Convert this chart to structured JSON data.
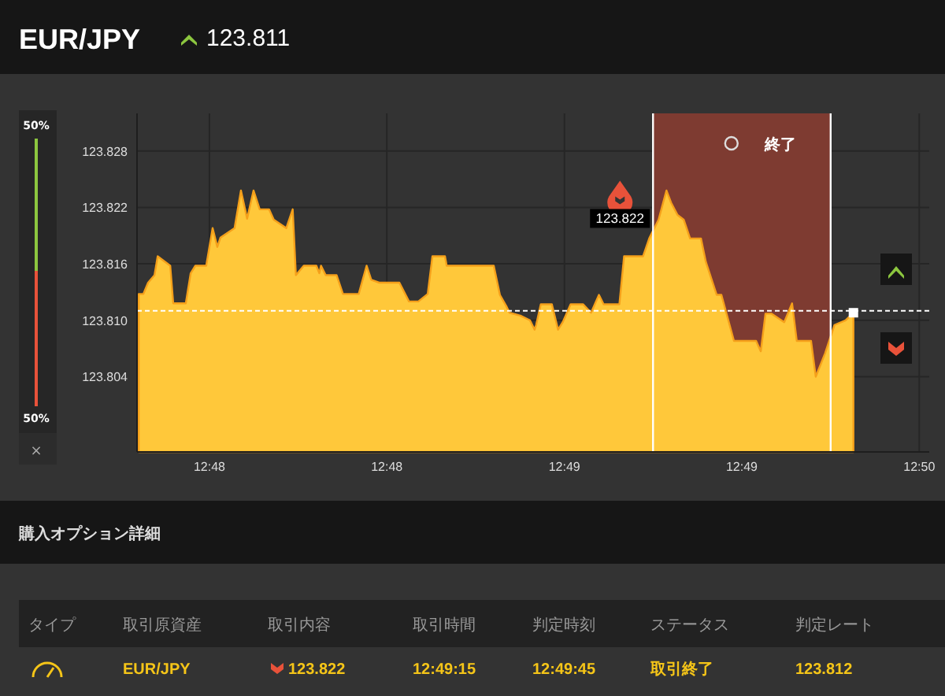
{
  "chart_data": {
    "type": "area",
    "title": "EUR/JPY",
    "subtitle": "123.811",
    "color": "#ffc83a",
    "grid": true,
    "xlim": [
      12.7966,
      12.8338
    ],
    "xticks": [
      {
        "value": 12.8,
        "label": "12:48"
      },
      {
        "value": 12.80833,
        "label": "12:48"
      },
      {
        "value": 12.81667,
        "label": "12:49"
      },
      {
        "value": 12.825,
        "label": "12:49"
      },
      {
        "value": 12.83333,
        "label": "12:50"
      }
    ],
    "ylim": [
      123.796,
      123.832
    ],
    "yticks": [
      123.804,
      {
        "value": 123.81,
        "label": "123.810"
      },
      123.816,
      123.822,
      123.828
    ],
    "x": [
      12.79668,
      12.7969,
      12.79712,
      12.79742,
      12.79757,
      12.79816,
      12.7983,
      12.79889,
      12.79912,
      12.79934,
      12.79985,
      12.80015,
      12.80037,
      12.80052,
      12.80118,
      12.80148,
      12.80177,
      12.80207,
      12.80236,
      12.8028,
      12.80302,
      12.80361,
      12.80391,
      12.80406,
      12.80443,
      12.80502,
      12.80516,
      12.80524,
      12.80546,
      12.80597,
      12.80627,
      12.80701,
      12.80738,
      12.8076,
      12.80797,
      12.80892,
      12.80937,
      12.80981,
      12.81025,
      12.81047,
      12.81106,
      12.81114,
      12.81335,
      12.81364,
      12.81394,
      12.81409,
      12.8146,
      12.81505,
      12.81527,
      12.81534,
      12.81556,
      12.81608,
      12.81637,
      12.81659,
      12.81696,
      12.81755,
      12.81792,
      12.81829,
      12.81851,
      12.81925,
      12.81947,
      12.82036,
      12.82065,
      12.82109,
      12.82146,
      12.82168,
      12.82198,
      12.82227,
      12.82257,
      12.82308,
      12.82331,
      12.82382,
      12.82404,
      12.82463,
      12.82567,
      12.82589,
      12.82611,
      12.8264,
      12.82699,
      12.82736,
      12.82758,
      12.82825,
      12.82847,
      12.82891,
      12.82935,
      12.82987,
      12.83024
    ],
    "values": [
      123.8128,
      123.8128,
      123.814,
      123.8148,
      123.8168,
      123.8158,
      123.8118,
      123.8118,
      123.815,
      123.8158,
      123.8158,
      123.8198,
      123.8178,
      123.8188,
      123.8198,
      123.8238,
      123.8208,
      123.8238,
      123.8218,
      123.8218,
      123.8207,
      123.8198,
      123.8218,
      123.8148,
      123.8158,
      123.8158,
      123.815,
      123.8158,
      123.8148,
      123.8148,
      123.8128,
      123.8128,
      123.8158,
      123.8143,
      123.814,
      123.814,
      123.812,
      123.812,
      123.8128,
      123.8168,
      123.8168,
      123.8158,
      123.8158,
      123.8127,
      123.8115,
      123.8108,
      123.8105,
      123.81,
      123.809,
      123.8095,
      123.8117,
      123.8117,
      123.809,
      123.8098,
      123.8117,
      123.8117,
      123.8108,
      123.8127,
      123.8117,
      123.8117,
      123.8168,
      123.8168,
      123.8187,
      123.8207,
      123.8238,
      123.8225,
      123.8212,
      123.8207,
      123.8187,
      123.8187,
      123.8162,
      123.8127,
      123.8127,
      123.8078,
      123.8078,
      123.8067,
      123.8107,
      123.8107,
      123.8098,
      123.8118,
      123.8078,
      123.8078,
      123.804,
      123.8065,
      123.8095,
      123.81,
      123.8108
    ],
    "ref_lines": [
      {
        "axis": "y",
        "value": 123.811,
        "color": "#ffffff",
        "line_style": "dashed"
      },
      {
        "axis": "x",
        "value": 12.82083,
        "color": "#ffffff",
        "line_style": "solid"
      },
      {
        "axis": "x",
        "value": 12.82917,
        "color": "#ffffff",
        "line_style": "solid"
      }
    ],
    "bands": [
      {
        "axis": "x",
        "from": 12.82083,
        "to": 12.82917,
        "label": "終了",
        "color": "#7e3b31"
      }
    ],
    "annotations": [
      {
        "text": "123.822",
        "x": 12.82083,
        "y": 123.822
      },
      "50%",
      "50%",
      "×",
      "購入オプション詳細",
      "タイプ",
      "取引原資産",
      "取引内容",
      "取引時間",
      "判定時刻",
      "ステータス",
      "判定レート",
      "EUR/JPY",
      "123.822",
      "12:49:15",
      "12:49:45",
      "取引終了",
      "123.812"
    ]
  }
}
